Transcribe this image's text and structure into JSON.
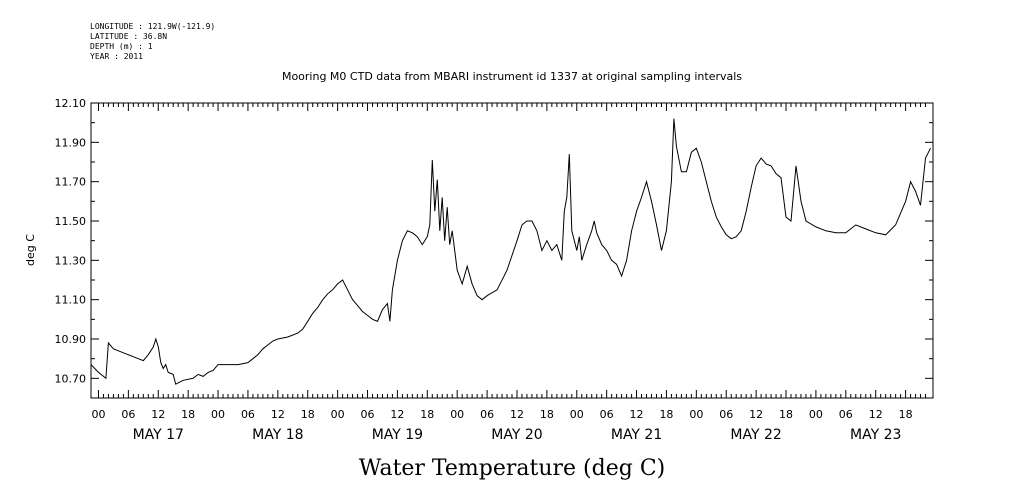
{
  "header": {
    "lines": [
      "LONGITUDE : 121.9W(-121.9)",
      "LATITUDE : 36.8N",
      "DEPTH (m) : 1",
      "YEAR : 2011"
    ]
  },
  "chart_data": {
    "type": "line",
    "title": "Mooring M0 CTD data from MBARI instrument id 1337 at original sampling intervals",
    "ylabel": "deg C",
    "xlabel": "Water Temperature (deg C)",
    "ylim": [
      10.6,
      12.1
    ],
    "x_unit": "hours since MAY 17 00:00",
    "xlim": [
      -1.5,
      167.5
    ],
    "y_ticks": [
      "10.70",
      "10.90",
      "11.10",
      "11.30",
      "11.50",
      "11.70",
      "11.90",
      "12.10"
    ],
    "x_hour_ticks": [
      "00",
      "06",
      "12",
      "18",
      "00",
      "06",
      "12",
      "18",
      "00",
      "06",
      "12",
      "18",
      "00",
      "06",
      "12",
      "18",
      "00",
      "06",
      "12",
      "18",
      "00",
      "06",
      "12",
      "18",
      "00",
      "06",
      "12",
      "18"
    ],
    "day_labels": [
      "MAY 17",
      "MAY 18",
      "MAY 19",
      "MAY 20",
      "MAY 21",
      "MAY 22",
      "MAY 23"
    ],
    "series": [
      {
        "points": [
          [
            -1.5,
            10.77
          ],
          [
            0,
            10.73
          ],
          [
            1.5,
            10.7
          ],
          [
            2,
            10.88
          ],
          [
            3,
            10.85
          ],
          [
            5,
            10.83
          ],
          [
            7,
            10.81
          ],
          [
            8,
            10.8
          ],
          [
            9,
            10.79
          ],
          [
            10,
            10.82
          ],
          [
            11,
            10.86
          ],
          [
            11.5,
            10.9
          ],
          [
            12,
            10.86
          ],
          [
            12.5,
            10.78
          ],
          [
            13,
            10.75
          ],
          [
            13.5,
            10.77
          ],
          [
            14,
            10.73
          ],
          [
            15,
            10.72
          ],
          [
            15.5,
            10.67
          ],
          [
            17,
            10.69
          ],
          [
            19,
            10.7
          ],
          [
            20,
            10.72
          ],
          [
            21,
            10.71
          ],
          [
            22,
            10.73
          ],
          [
            23,
            10.74
          ],
          [
            24,
            10.77
          ],
          [
            26,
            10.77
          ],
          [
            28,
            10.77
          ],
          [
            30,
            10.78
          ],
          [
            31,
            10.8
          ],
          [
            32,
            10.82
          ],
          [
            33,
            10.85
          ],
          [
            34,
            10.87
          ],
          [
            35,
            10.89
          ],
          [
            36,
            10.9
          ],
          [
            38,
            10.91
          ],
          [
            40,
            10.93
          ],
          [
            41,
            10.95
          ],
          [
            42,
            10.99
          ],
          [
            43,
            11.03
          ],
          [
            44,
            11.06
          ],
          [
            45,
            11.1
          ],
          [
            46,
            11.13
          ],
          [
            47,
            11.15
          ],
          [
            48,
            11.18
          ],
          [
            49,
            11.2
          ],
          [
            50,
            11.15
          ],
          [
            51,
            11.1
          ],
          [
            52,
            11.07
          ],
          [
            53,
            11.04
          ],
          [
            54,
            11.02
          ],
          [
            55,
            11.0
          ],
          [
            56,
            10.99
          ],
          [
            57,
            11.05
          ],
          [
            58,
            11.08
          ],
          [
            58.5,
            10.99
          ],
          [
            59,
            11.15
          ],
          [
            60,
            11.3
          ],
          [
            61,
            11.4
          ],
          [
            62,
            11.45
          ],
          [
            63,
            11.44
          ],
          [
            64,
            11.42
          ],
          [
            65,
            11.38
          ],
          [
            66,
            11.42
          ],
          [
            66.5,
            11.48
          ],
          [
            67,
            11.81
          ],
          [
            67.5,
            11.55
          ],
          [
            68,
            11.71
          ],
          [
            68.5,
            11.45
          ],
          [
            69,
            11.62
          ],
          [
            69.5,
            11.4
          ],
          [
            70,
            11.57
          ],
          [
            70.5,
            11.38
          ],
          [
            71,
            11.45
          ],
          [
            72,
            11.25
          ],
          [
            73,
            11.18
          ],
          [
            74,
            11.27
          ],
          [
            75,
            11.18
          ],
          [
            76,
            11.12
          ],
          [
            77,
            11.1
          ],
          [
            78,
            11.12
          ],
          [
            80,
            11.15
          ],
          [
            82,
            11.25
          ],
          [
            84,
            11.4
          ],
          [
            85,
            11.48
          ],
          [
            86,
            11.5
          ],
          [
            87,
            11.5
          ],
          [
            88,
            11.45
          ],
          [
            89,
            11.35
          ],
          [
            90,
            11.4
          ],
          [
            91,
            11.35
          ],
          [
            92,
            11.38
          ],
          [
            93,
            11.3
          ],
          [
            93.5,
            11.55
          ],
          [
            94,
            11.62
          ],
          [
            94.5,
            11.84
          ],
          [
            95,
            11.45
          ],
          [
            96,
            11.35
          ],
          [
            96.5,
            11.42
          ],
          [
            97,
            11.3
          ],
          [
            98,
            11.38
          ],
          [
            99,
            11.45
          ],
          [
            99.5,
            11.5
          ],
          [
            100,
            11.44
          ],
          [
            101,
            11.38
          ],
          [
            102,
            11.35
          ],
          [
            103,
            11.3
          ],
          [
            104,
            11.28
          ],
          [
            105,
            11.22
          ],
          [
            106,
            11.3
          ],
          [
            107,
            11.45
          ],
          [
            108,
            11.55
          ],
          [
            109,
            11.62
          ],
          [
            110,
            11.7
          ],
          [
            111,
            11.6
          ],
          [
            112,
            11.48
          ],
          [
            113,
            11.35
          ],
          [
            114,
            11.45
          ],
          [
            115,
            11.7
          ],
          [
            115.5,
            12.02
          ],
          [
            116,
            11.88
          ],
          [
            117,
            11.75
          ],
          [
            118,
            11.75
          ],
          [
            119,
            11.85
          ],
          [
            120,
            11.87
          ],
          [
            121,
            11.8
          ],
          [
            122,
            11.7
          ],
          [
            123,
            11.6
          ],
          [
            124,
            11.52
          ],
          [
            125,
            11.47
          ],
          [
            126,
            11.43
          ],
          [
            127,
            11.41
          ],
          [
            128,
            11.42
          ],
          [
            129,
            11.45
          ],
          [
            130,
            11.55
          ],
          [
            131,
            11.67
          ],
          [
            132,
            11.78
          ],
          [
            133,
            11.82
          ],
          [
            134,
            11.79
          ],
          [
            135,
            11.78
          ],
          [
            136,
            11.74
          ],
          [
            137,
            11.72
          ],
          [
            138,
            11.52
          ],
          [
            139,
            11.5
          ],
          [
            140,
            11.78
          ],
          [
            141,
            11.6
          ],
          [
            142,
            11.5
          ],
          [
            144,
            11.47
          ],
          [
            146,
            11.45
          ],
          [
            148,
            11.44
          ],
          [
            150,
            11.44
          ],
          [
            152,
            11.48
          ],
          [
            154,
            11.46
          ],
          [
            156,
            11.44
          ],
          [
            158,
            11.43
          ],
          [
            160,
            11.48
          ],
          [
            162,
            11.6
          ],
          [
            163,
            11.7
          ],
          [
            164,
            11.65
          ],
          [
            165,
            11.58
          ],
          [
            166,
            11.82
          ],
          [
            167,
            11.87
          ]
        ]
      }
    ]
  }
}
